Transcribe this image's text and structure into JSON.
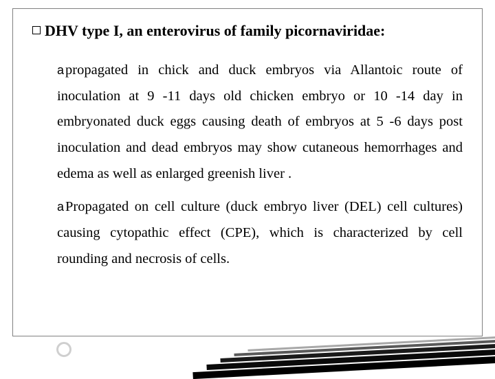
{
  "heading": {
    "prefix": "DHV",
    "rest": " type I, an enterovirus of family picornaviridae:"
  },
  "bullet_glyph": "a",
  "paragraphs": [
    "propagated in chick and duck embryos via Allantoic route of inoculation at 9 -11 days old chicken embryo or 10 -14 day in embryonated duck eggs causing death of embryos at 5 -6 days post inoculation and dead embryos may show cutaneous hemorrhages and edema as well as enlarged greenish liver .",
    "Propagated on cell culture (duck embryo liver (DEL) cell cultures) causing cytopathic effect (CPE), which is characterized by cell rounding and necrosis of cells."
  ],
  "colors": {
    "text": "#000000",
    "border": "#808080",
    "background": "#ffffff"
  },
  "font": {
    "heading_size_pt": 17,
    "body_size_pt": 15,
    "line_height": 1.85
  }
}
